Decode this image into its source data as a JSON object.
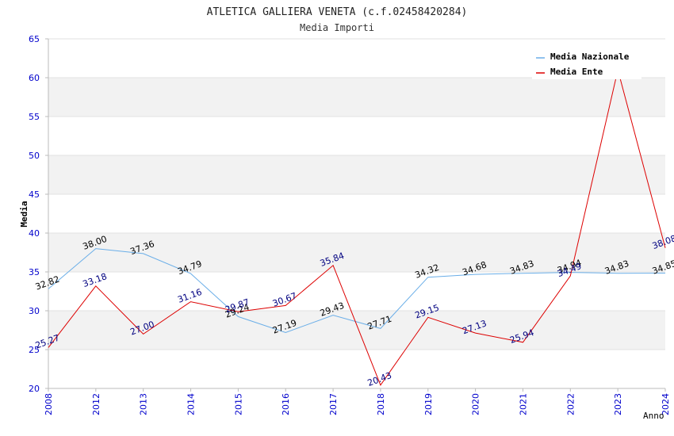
{
  "chart_data": {
    "type": "line",
    "title": "ATLETICA GALLIERA VENETA (c.f.02458420284)",
    "subtitle": "Media Importi",
    "xlabel": "Anno",
    "ylabel": "Media",
    "ylim": [
      20,
      65
    ],
    "yticks": [
      20,
      25,
      30,
      35,
      40,
      45,
      50,
      55,
      60,
      65
    ],
    "categories": [
      "2008",
      "2012",
      "2013",
      "2014",
      "2015",
      "2016",
      "2017",
      "2018",
      "2019",
      "2020",
      "2021",
      "2022",
      "2023",
      "2024"
    ],
    "series": [
      {
        "name": "Media Nazionale",
        "color": "#6aaee8",
        "label_color": "#000000",
        "values": [
          32.82,
          38.0,
          37.36,
          34.79,
          29.24,
          27.19,
          29.43,
          27.71,
          34.32,
          34.68,
          34.83,
          34.94,
          34.83,
          34.85
        ],
        "labels": [
          "32.82",
          "38.00",
          "37.36",
          "34.79",
          "29.24",
          "27.19",
          "29.43",
          "27.71",
          "34.32",
          "34.68",
          "34.83",
          "34.94",
          "34.83",
          "34.85"
        ]
      },
      {
        "name": "Media Ente",
        "color": "#dd0000",
        "label_color": "#000080",
        "values": [
          25.27,
          33.18,
          27.0,
          31.16,
          29.87,
          30.67,
          35.84,
          20.43,
          29.15,
          27.13,
          25.94,
          34.49,
          61.0,
          38.08
        ],
        "labels": [
          "25.27",
          "33.18",
          "27.00",
          "31.16",
          "29.87",
          "30.67",
          "35.84",
          "20.43",
          "29.15",
          "27.13",
          "25.94",
          "34.49",
          "",
          "38.08"
        ]
      }
    ],
    "legend_position": "top-right",
    "grid": true,
    "band_color": "#f2f2f2",
    "axis_tick_color": "#0000cc"
  }
}
